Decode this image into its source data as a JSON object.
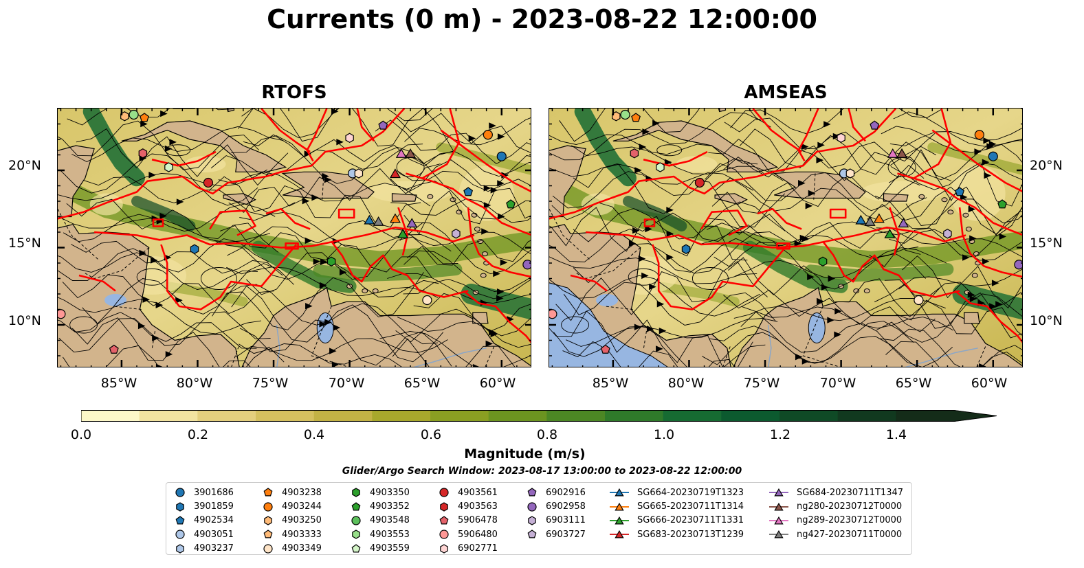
{
  "title": "Currents (0 m) - 2023-08-22 12:00:00",
  "panels": [
    {
      "title": "RTOFS"
    },
    {
      "title": "AMSEAS"
    }
  ],
  "axes": {
    "y_ticks": [
      "20°N",
      "15°N",
      "10°N"
    ],
    "x_ticks": [
      "85°W",
      "80°W",
      "75°W",
      "70°W",
      "65°W",
      "60°W"
    ]
  },
  "colorbar": {
    "label": "Magnitude (m/s)",
    "ticks": [
      "0.0",
      "0.2",
      "0.4",
      "0.6",
      "0.8",
      "1.0",
      "1.2",
      "1.4"
    ],
    "range": [
      0.0,
      1.5
    ],
    "extend": "max",
    "colors": [
      "#fdf8c8",
      "#f2e3a0",
      "#e4cf7e",
      "#d5c05f",
      "#c3b245",
      "#a8a82c",
      "#8a9f22",
      "#6c9420",
      "#4c8724",
      "#2f7a2a",
      "#166b32",
      "#0c5a2f",
      "#0f4a26",
      "#11391f",
      "#142c19"
    ]
  },
  "search_window": "Glider/Argo Search Window: 2023-08-17 13:00:00 to 2023-08-22 12:00:00",
  "legend": {
    "columns": [
      [
        {
          "label": "3901686",
          "marker": "circle",
          "color": "#1f77b4"
        },
        {
          "label": "3901859",
          "marker": "hexagon",
          "color": "#1f77b4"
        },
        {
          "label": "4902534",
          "marker": "pentagon",
          "color": "#1f77b4"
        },
        {
          "label": "4903051",
          "marker": "circle",
          "color": "#aec7e8"
        },
        {
          "label": "4903237",
          "marker": "hexagon",
          "color": "#aec7e8"
        }
      ],
      [
        {
          "label": "4903238",
          "marker": "pentagon",
          "color": "#ff7f0e"
        },
        {
          "label": "4903244",
          "marker": "circle",
          "color": "#ff7f0e"
        },
        {
          "label": "4903250",
          "marker": "hexagon",
          "color": "#ffbb78"
        },
        {
          "label": "4903333",
          "marker": "pentagon",
          "color": "#ffbb78"
        },
        {
          "label": "4903349",
          "marker": "circle",
          "color": "#ffe5c8"
        }
      ],
      [
        {
          "label": "4903350",
          "marker": "hexagon",
          "color": "#2ca02c"
        },
        {
          "label": "4903352",
          "marker": "pentagon",
          "color": "#2ca02c"
        },
        {
          "label": "4903548",
          "marker": "circle",
          "color": "#5cc05c"
        },
        {
          "label": "4903553",
          "marker": "hexagon",
          "color": "#98df8a"
        },
        {
          "label": "4903559",
          "marker": "pentagon",
          "color": "#d4f5c8"
        }
      ],
      [
        {
          "label": "4903561",
          "marker": "circle",
          "color": "#d62728"
        },
        {
          "label": "4903563",
          "marker": "hexagon",
          "color": "#d62728"
        },
        {
          "label": "5906478",
          "marker": "pentagon",
          "color": "#e4626a"
        },
        {
          "label": "5906480",
          "marker": "circle",
          "color": "#ff9896"
        },
        {
          "label": "6902771",
          "marker": "hexagon",
          "color": "#ffd5d4"
        }
      ],
      [
        {
          "label": "6902916",
          "marker": "pentagon",
          "color": "#9467bd"
        },
        {
          "label": "6902958",
          "marker": "circle",
          "color": "#9467bd"
        },
        {
          "label": "6903111",
          "marker": "hexagon",
          "color": "#c5b0d5"
        },
        {
          "label": "6903727",
          "marker": "pentagon",
          "color": "#c5b0d5"
        }
      ],
      [
        {
          "label": "SG664-20230719T1323",
          "marker": "triangle",
          "color": "#1f77b4"
        },
        {
          "label": "SG665-20230711T1314",
          "marker": "triangle",
          "color": "#ff7f0e"
        },
        {
          "label": "SG666-20230711T1331",
          "marker": "triangle",
          "color": "#2ca02c"
        },
        {
          "label": "SG683-20230713T1239",
          "marker": "triangle",
          "color": "#d62728"
        }
      ],
      [
        {
          "label": "SG684-20230711T1347",
          "marker": "triangle",
          "color": "#9467bd"
        },
        {
          "label": "ng280-20230712T0000",
          "marker": "triangle",
          "color": "#8c564b"
        },
        {
          "label": "ng289-20230712T0000",
          "marker": "triangle",
          "color": "#e377c2"
        },
        {
          "label": "ng427-20230711T0000",
          "marker": "triangle",
          "color": "#7f7f7f"
        }
      ]
    ]
  },
  "map_colors": {
    "land": "#d2b48c",
    "water_body": "#97b6e1",
    "exclusion_lines": "#ff0000"
  }
}
